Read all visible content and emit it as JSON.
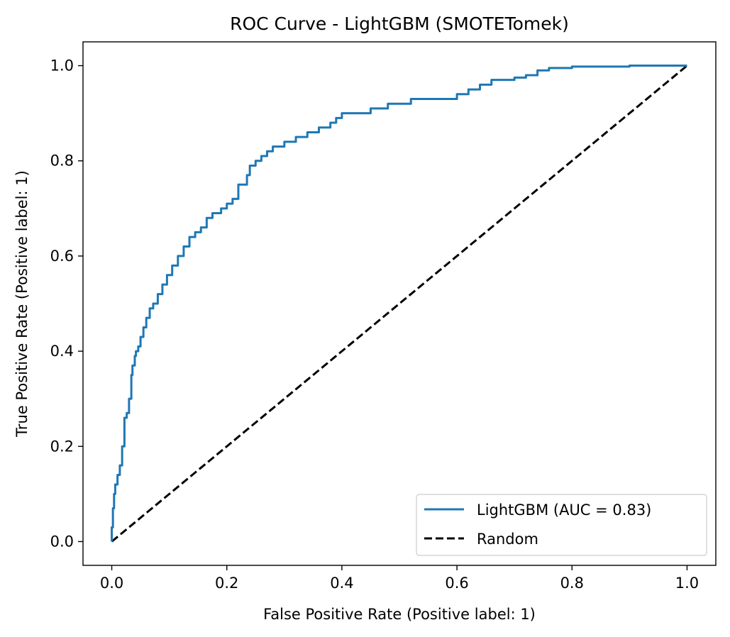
{
  "chart_data": {
    "type": "line",
    "title": "ROC Curve - LightGBM (SMOTETomek)",
    "xlabel": "False Positive Rate (Positive label: 1)",
    "ylabel": "True Positive Rate (Positive label: 1)",
    "xlim": [
      -0.05,
      1.05
    ],
    "ylim": [
      -0.05,
      1.05
    ],
    "xticks": [
      0.0,
      0.2,
      0.4,
      0.6,
      0.8,
      1.0
    ],
    "xtick_labels": [
      "0.0",
      "0.2",
      "0.4",
      "0.6",
      "0.8",
      "1.0"
    ],
    "yticks": [
      0.0,
      0.2,
      0.4,
      0.6,
      0.8,
      1.0
    ],
    "ytick_labels": [
      "0.0",
      "0.2",
      "0.4",
      "0.6",
      "0.8",
      "1.0"
    ],
    "grid": false,
    "legend_position": "lower-right",
    "series": [
      {
        "name": "LightGBM (AUC = 0.83)",
        "color": "#1f77b4",
        "style": "solid",
        "x": [
          0.0,
          0.0,
          0.002,
          0.004,
          0.006,
          0.01,
          0.014,
          0.018,
          0.022,
          0.026,
          0.03,
          0.034,
          0.036,
          0.04,
          0.042,
          0.046,
          0.05,
          0.055,
          0.06,
          0.066,
          0.072,
          0.08,
          0.088,
          0.096,
          0.105,
          0.115,
          0.125,
          0.135,
          0.145,
          0.155,
          0.165,
          0.175,
          0.19,
          0.2,
          0.21,
          0.22,
          0.235,
          0.24,
          0.25,
          0.26,
          0.27,
          0.28,
          0.3,
          0.32,
          0.34,
          0.36,
          0.38,
          0.39,
          0.4,
          0.42,
          0.45,
          0.48,
          0.5,
          0.52,
          0.55,
          0.6,
          0.62,
          0.64,
          0.66,
          0.68,
          0.7,
          0.72,
          0.74,
          0.76,
          0.8,
          0.9,
          1.0
        ],
        "y": [
          0.0,
          0.03,
          0.07,
          0.1,
          0.12,
          0.14,
          0.16,
          0.2,
          0.26,
          0.27,
          0.3,
          0.35,
          0.37,
          0.39,
          0.4,
          0.41,
          0.43,
          0.45,
          0.47,
          0.49,
          0.5,
          0.52,
          0.54,
          0.56,
          0.58,
          0.6,
          0.62,
          0.64,
          0.65,
          0.66,
          0.68,
          0.69,
          0.7,
          0.71,
          0.72,
          0.75,
          0.77,
          0.79,
          0.8,
          0.81,
          0.82,
          0.83,
          0.84,
          0.85,
          0.86,
          0.87,
          0.88,
          0.89,
          0.9,
          0.9,
          0.91,
          0.92,
          0.92,
          0.93,
          0.93,
          0.94,
          0.95,
          0.96,
          0.97,
          0.97,
          0.975,
          0.98,
          0.99,
          0.995,
          0.998,
          1.0,
          1.0
        ]
      },
      {
        "name": "Random",
        "color": "#000000",
        "style": "dashed",
        "x": [
          0.0,
          1.0
        ],
        "y": [
          0.0,
          1.0
        ]
      }
    ]
  }
}
